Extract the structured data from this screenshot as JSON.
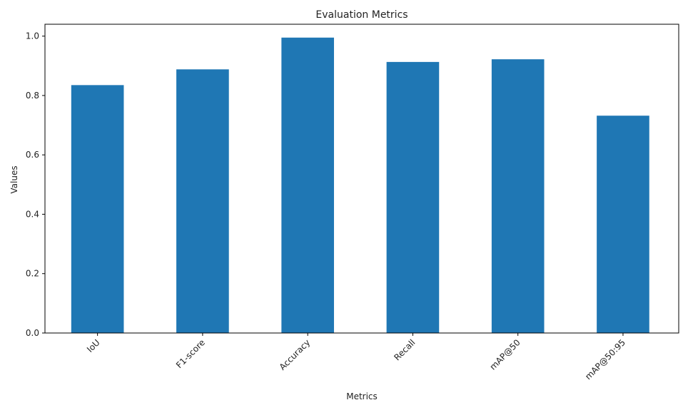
{
  "chart_data": {
    "type": "bar",
    "title": "Evaluation Metrics",
    "xlabel": "Metrics",
    "ylabel": "Values",
    "categories": [
      "IoU",
      "F1-score",
      "Accuracy",
      "Recall",
      "mAP@50",
      "mAP@50:95"
    ],
    "values": [
      0.835,
      0.888,
      0.995,
      0.913,
      0.922,
      0.732
    ],
    "ylim": [
      0,
      1.04
    ],
    "yticks": [
      "0.0",
      "0.2",
      "0.4",
      "0.6",
      "0.8",
      "1.0"
    ],
    "bar_color": "#1f77b4",
    "grid": false,
    "xtick_rotation_deg": 45
  }
}
